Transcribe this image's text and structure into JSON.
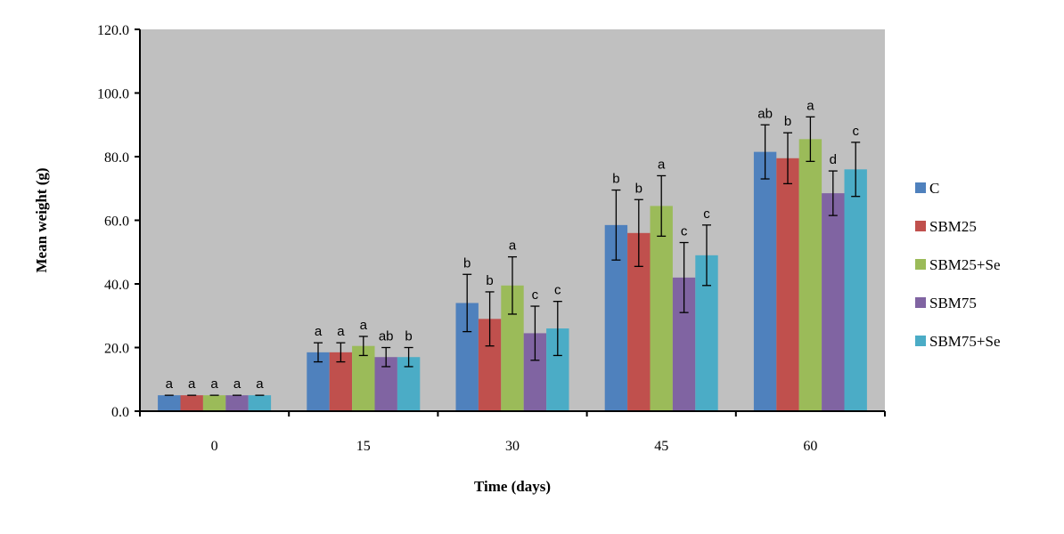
{
  "chart_data": {
    "type": "bar",
    "title": "",
    "xlabel": "Time (days)",
    "ylabel": "Mean weight (g)",
    "ylim": [
      0,
      120
    ],
    "y_ticks": [
      "0.0",
      "20.0",
      "40.0",
      "60.0",
      "80.0",
      "100.0",
      "120.0"
    ],
    "categories": [
      "0",
      "15",
      "30",
      "45",
      "60"
    ],
    "grid": false,
    "plot_background": "#c0c0c0",
    "legend_position": "right",
    "series": [
      {
        "name": "C",
        "color": "#4f81bd",
        "values": [
          5,
          18.5,
          34,
          58.5,
          81.5
        ],
        "errors": [
          0,
          3,
          9,
          11,
          8.5
        ],
        "letters": [
          "a",
          "a",
          "b",
          "b",
          "ab"
        ]
      },
      {
        "name": "SBM25",
        "color": "#c0504d",
        "values": [
          5,
          18.5,
          29,
          56,
          79.5
        ],
        "errors": [
          0,
          3,
          8.5,
          10.5,
          8
        ],
        "letters": [
          "a",
          "a",
          "b",
          "b",
          "b"
        ]
      },
      {
        "name": "SBM25+Se",
        "color": "#9bbb59",
        "values": [
          5,
          20.5,
          39.5,
          64.5,
          85.5
        ],
        "errors": [
          0,
          3,
          9,
          9.5,
          7
        ],
        "letters": [
          "a",
          "a",
          "a",
          "a",
          "a"
        ]
      },
      {
        "name": "SBM75",
        "color": "#8064a2",
        "values": [
          5,
          17,
          24.5,
          42,
          68.5
        ],
        "errors": [
          0,
          3,
          8.5,
          11,
          7
        ],
        "letters": [
          "a",
          "ab",
          "c",
          "c",
          "d"
        ]
      },
      {
        "name": "SBM75+Se",
        "color": "#4bacc6",
        "values": [
          5,
          17,
          26,
          49,
          76
        ],
        "errors": [
          0,
          3,
          8.5,
          9.5,
          8.5
        ],
        "letters": [
          "a",
          "b",
          "c",
          "c",
          "c"
        ]
      }
    ]
  }
}
